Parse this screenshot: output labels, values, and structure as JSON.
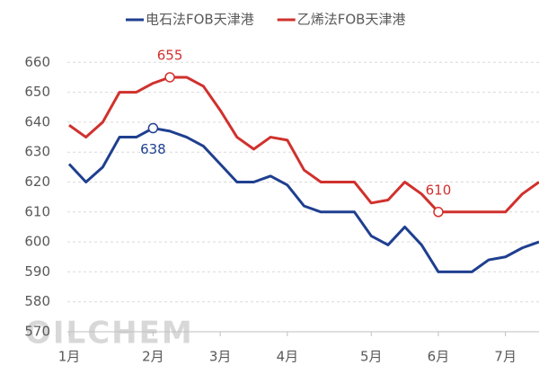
{
  "chart_data": {
    "type": "line",
    "watermark": "OILCHEM",
    "categories": [
      "1月",
      null,
      null,
      null,
      null,
      "2月",
      null,
      null,
      null,
      "3月",
      null,
      null,
      null,
      "4月",
      null,
      null,
      null,
      null,
      "5月",
      null,
      null,
      null,
      "6月",
      null,
      null,
      null,
      "7月",
      null,
      null
    ],
    "series": [
      {
        "name": "电石法FOB天津港",
        "color": "#1f3f8f",
        "labeled_points": [
          5
        ],
        "values": [
          626,
          620,
          625,
          635,
          635,
          638,
          637,
          635,
          632,
          626,
          620,
          620,
          622,
          619,
          612,
          610,
          610,
          610,
          602,
          599,
          605,
          599,
          590,
          590,
          590,
          594,
          595,
          598,
          600
        ]
      },
      {
        "name": "乙烯法FOB天津港",
        "color": "#d0312d",
        "labeled_points": [
          6,
          22
        ],
        "values": [
          639,
          635,
          640,
          650,
          650,
          653,
          655,
          655,
          652,
          644,
          635,
          631,
          635,
          634,
          624,
          620,
          620,
          620,
          613,
          614,
          620,
          616,
          610,
          610,
          610,
          610,
          610,
          616,
          620
        ]
      }
    ],
    "ylim": [
      570,
      670
    ],
    "yticks": [
      570,
      580,
      590,
      600,
      610,
      620,
      630,
      640,
      650,
      660
    ],
    "grid": true,
    "legend": "top"
  }
}
